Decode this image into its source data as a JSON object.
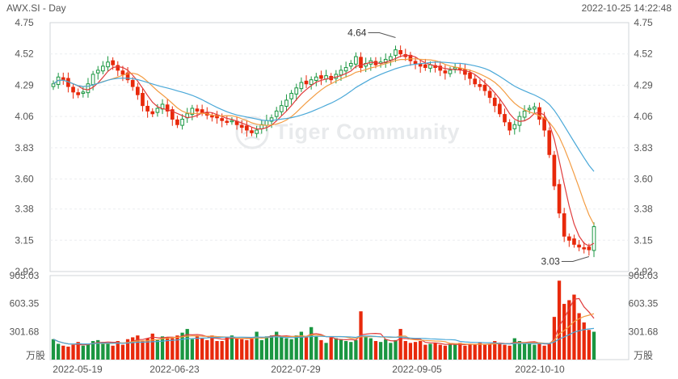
{
  "header": {
    "symbol_period": "AWX.SI - Day",
    "datetime": "2022-10-25 14:22:48"
  },
  "watermark": {
    "text": "Tiger Community"
  },
  "chart_data": [
    {
      "type": "candlestick",
      "price_axis_ticks": [
        "4.75",
        "4.52",
        "4.29",
        "4.06",
        "3.83",
        "3.60",
        "3.38",
        "3.15",
        "2.92"
      ],
      "ylim": [
        2.92,
        4.75
      ],
      "x_tick_labels": [
        "2022-05-19",
        "2022-06-23",
        "2022-07-29",
        "2022-09-05",
        "2022-10-10"
      ],
      "annotations": [
        {
          "label": "4.64",
          "value": 4.64
        },
        {
          "label": "3.03",
          "value": 3.03
        }
      ],
      "colors": {
        "up": "#1a9641",
        "down": "#e8290b",
        "ma_fast": "#e03c3c",
        "ma_mid": "#f39c42",
        "ma_slow": "#4aa8d8"
      },
      "closes": [
        4.3,
        4.35,
        4.33,
        4.28,
        4.24,
        4.22,
        4.24,
        4.3,
        4.37,
        4.4,
        4.43,
        4.46,
        4.44,
        4.4,
        4.37,
        4.33,
        4.28,
        4.22,
        4.14,
        4.1,
        4.08,
        4.12,
        4.15,
        4.1,
        4.04,
        4.0,
        4.04,
        4.08,
        4.12,
        4.1,
        4.09,
        4.07,
        4.06,
        4.05,
        4.03,
        4.02,
        4.03,
        4.0,
        3.98,
        3.96,
        3.94,
        3.96,
        4.0,
        4.03,
        4.05,
        4.1,
        4.14,
        4.18,
        4.23,
        4.27,
        4.31,
        4.3,
        4.33,
        4.35,
        4.34,
        4.36,
        4.33,
        4.37,
        4.4,
        4.42,
        4.45,
        4.5,
        4.42,
        4.45,
        4.47,
        4.44,
        4.46,
        4.48,
        4.5,
        4.55,
        4.52,
        4.5,
        4.47,
        4.45,
        4.43,
        4.42,
        4.44,
        4.42,
        4.4,
        4.38,
        4.4,
        4.42,
        4.41,
        4.37,
        4.34,
        4.3,
        4.28,
        4.25,
        4.2,
        4.14,
        4.08,
        4.02,
        3.96,
        4.0,
        4.06,
        4.1,
        4.12,
        4.13,
        4.04,
        3.96,
        3.78,
        3.55,
        3.35,
        3.18,
        3.15,
        3.12,
        3.1,
        3.09,
        3.08,
        3.25
      ]
    },
    {
      "type": "bar",
      "volume_axis_ticks": [
        "905.03",
        "603.35",
        "301.68"
      ],
      "unit_label": "万股",
      "ylim": [
        0,
        905.03
      ],
      "values": [
        220,
        170,
        150,
        140,
        160,
        190,
        150,
        170,
        200,
        210,
        190,
        180,
        150,
        200,
        160,
        220,
        240,
        260,
        200,
        230,
        280,
        210,
        250,
        240,
        230,
        260,
        290,
        330,
        220,
        250,
        230,
        210,
        260,
        200,
        200,
        240,
        260,
        230,
        220,
        210,
        240,
        300,
        210,
        250,
        260,
        300,
        240,
        230,
        220,
        260,
        300,
        240,
        350,
        250,
        210,
        180,
        240,
        230,
        220,
        200,
        190,
        210,
        520,
        250,
        230,
        200,
        190,
        220,
        180,
        210,
        330,
        200,
        180,
        190,
        200,
        160,
        170,
        180,
        160,
        150,
        170,
        160,
        180,
        150,
        170,
        160,
        180,
        160,
        170,
        200,
        180,
        160,
        150,
        230,
        200,
        180,
        190,
        160,
        170,
        150,
        170,
        460,
        850,
        600,
        640,
        700,
        500,
        400,
        320,
        300
      ]
    }
  ]
}
